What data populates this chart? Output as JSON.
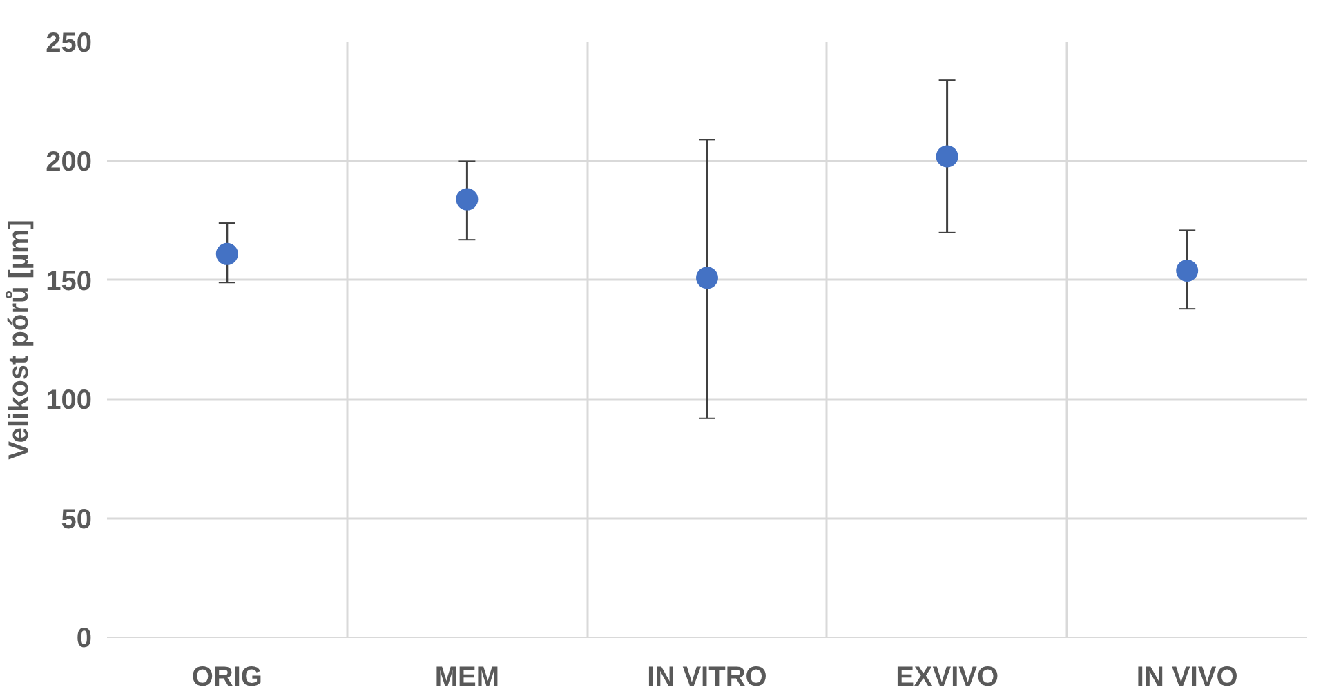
{
  "chart_data": {
    "type": "scatter",
    "ylabel": "Velikost pórů [µm]",
    "categories": [
      "ORIG",
      "MEM",
      "IN VITRO",
      "EXVIVO",
      "IN VIVO"
    ],
    "values": [
      161,
      184,
      151,
      202,
      154
    ],
    "errors": [
      [
        149,
        174
      ],
      [
        167,
        200
      ],
      [
        92,
        209
      ],
      [
        170,
        234
      ],
      [
        138,
        171
      ]
    ],
    "color": "#4472c4",
    "marker": "circle",
    "ylim": [
      0,
      250
    ],
    "yticks": [
      0,
      50,
      100,
      150,
      200,
      250
    ],
    "grid": true
  }
}
